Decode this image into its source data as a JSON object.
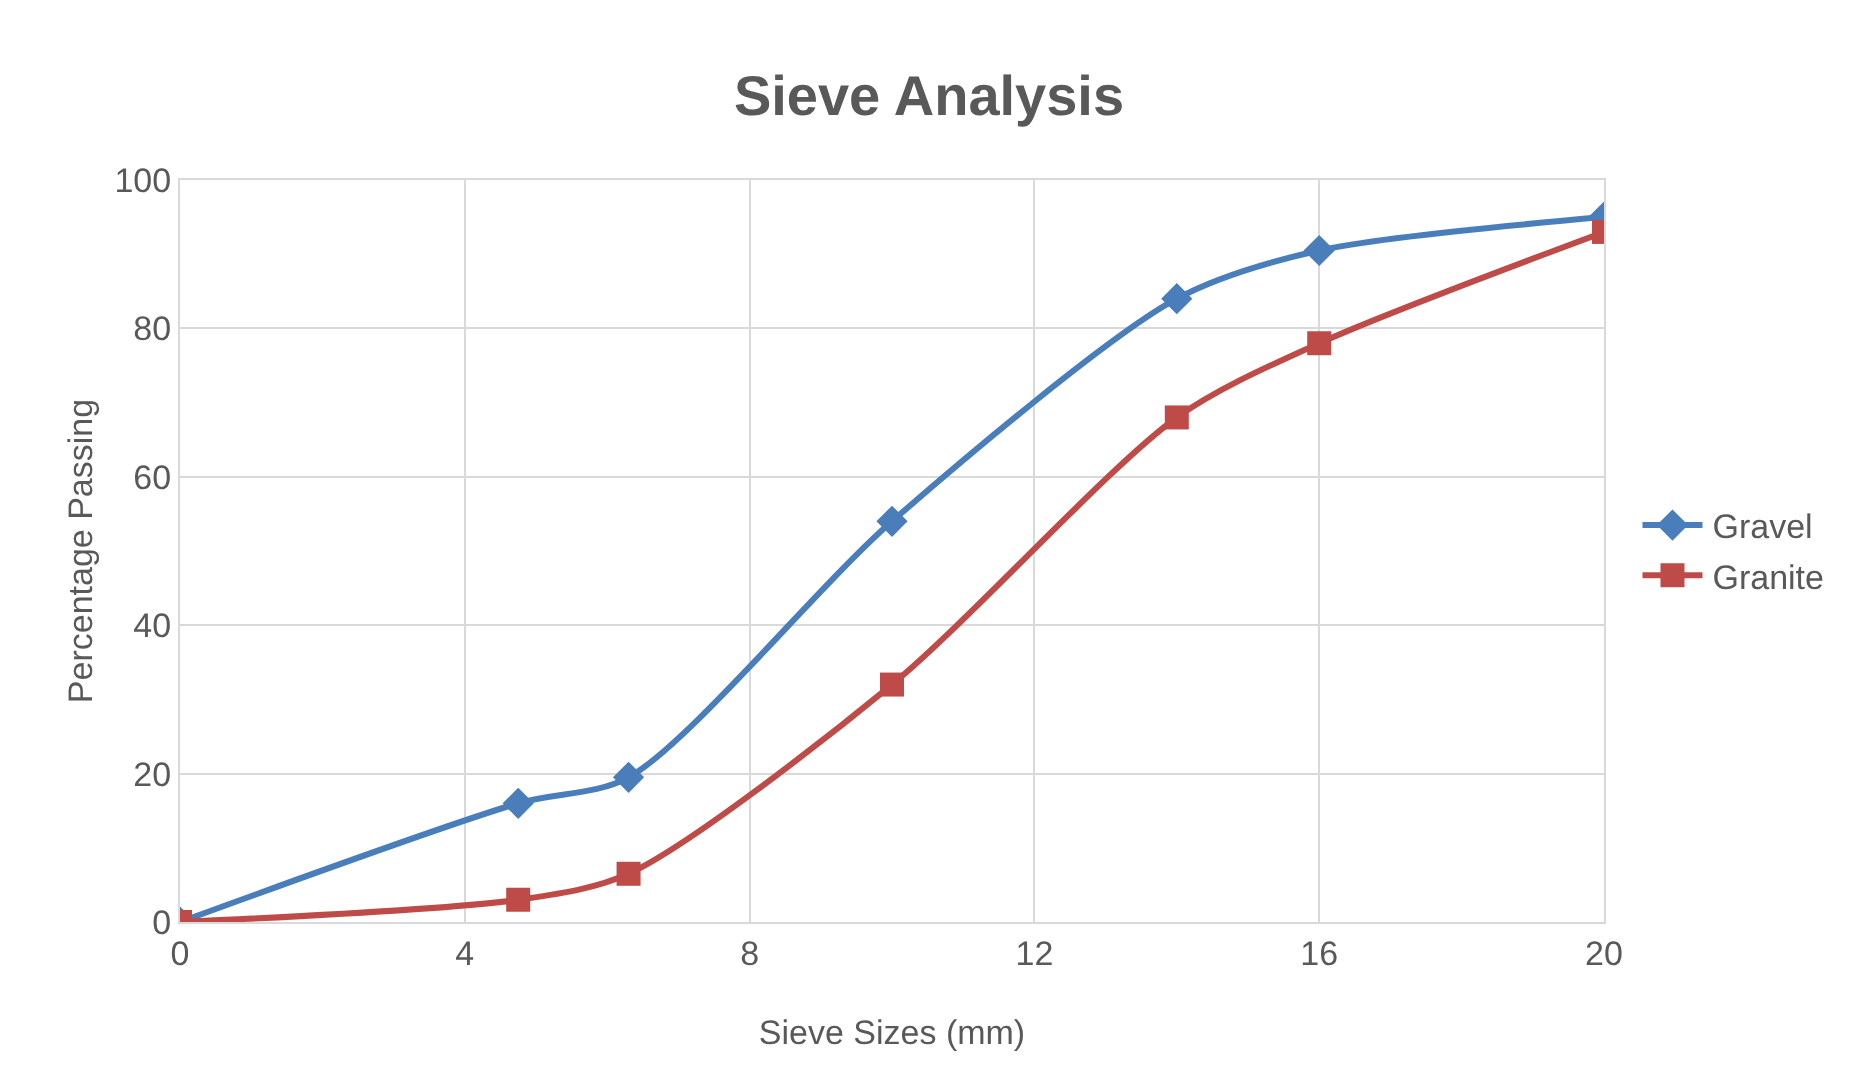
{
  "chart_data": {
    "type": "line",
    "title": "Sieve Analysis",
    "xlabel": "Sieve Sizes (mm)",
    "ylabel": "Percentage Passing",
    "xlim": [
      0,
      20
    ],
    "xticks": [
      0,
      4,
      8,
      12,
      16,
      20
    ],
    "ylim": [
      0,
      100
    ],
    "yticks": [
      0,
      20,
      40,
      60,
      80,
      100
    ],
    "grid": true,
    "legend": "right",
    "series": [
      {
        "name": "Gravel",
        "color": "#4a7ebb",
        "marker": "diamond",
        "x": [
          0,
          4.75,
          6.3,
          10,
          14,
          16,
          20
        ],
        "values": [
          0,
          16,
          19.5,
          54,
          84,
          90.5,
          95
        ]
      },
      {
        "name": "Granite",
        "color": "#be4b48",
        "marker": "square",
        "x": [
          0,
          4.75,
          6.3,
          10,
          14,
          16,
          20
        ],
        "values": [
          0,
          3,
          6.5,
          32,
          68,
          78,
          93
        ]
      }
    ]
  }
}
